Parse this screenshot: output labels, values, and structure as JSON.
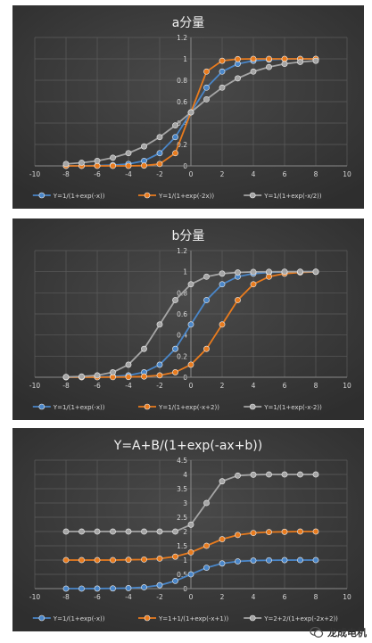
{
  "chart_data": [
    {
      "type": "line",
      "title": "a分量",
      "xlim": [
        -10,
        10
      ],
      "ylim": [
        0,
        1.2
      ],
      "xticks": [
        "-10",
        "-8",
        "-6",
        "-4",
        "-2",
        "0",
        "2",
        "4",
        "6",
        "8",
        "10"
      ],
      "yticks": [
        "0",
        "0.2",
        "0.4",
        "0.6",
        "0.8",
        "1",
        "1.2"
      ],
      "x": [
        -8,
        -7,
        -6,
        -5,
        -4,
        -3,
        -2,
        -1,
        0,
        1,
        2,
        3,
        4,
        5,
        6,
        7,
        8
      ],
      "series": [
        {
          "name": "Y=1/(1+exp(-x))",
          "color": "#4a86c8",
          "values": [
            0.0003,
            0.0009,
            0.0025,
            0.0067,
            0.018,
            0.047,
            0.119,
            0.269,
            0.5,
            0.731,
            0.881,
            0.953,
            0.982,
            0.993,
            0.998,
            0.999,
            1.0
          ]
        },
        {
          "name": "Y=1/(1+exp(-2x))",
          "color": "#e87b1e",
          "values": [
            0.0,
            0.0,
            0.0,
            0.0,
            0.0003,
            0.0025,
            0.018,
            0.119,
            0.5,
            0.881,
            0.982,
            0.998,
            1.0,
            1.0,
            1.0,
            1.0,
            1.0
          ]
        },
        {
          "name": "Y=1/(1+exp(-x/2))",
          "color": "#a5a5a5",
          "values": [
            0.018,
            0.029,
            0.047,
            0.076,
            0.119,
            0.182,
            0.269,
            0.378,
            0.5,
            0.622,
            0.731,
            0.818,
            0.881,
            0.924,
            0.953,
            0.971,
            0.982
          ]
        }
      ]
    },
    {
      "type": "line",
      "title": "b分量",
      "xlim": [
        -10,
        10
      ],
      "ylim": [
        0,
        1.2
      ],
      "xticks": [
        "-10",
        "-8",
        "-6",
        "-4",
        "-2",
        "0",
        "2",
        "4",
        "6",
        "8",
        "10"
      ],
      "yticks": [
        "0",
        "0.2",
        "0.4",
        "0.6",
        "0.8",
        "1",
        "1.2"
      ],
      "x": [
        -8,
        -7,
        -6,
        -5,
        -4,
        -3,
        -2,
        -1,
        0,
        1,
        2,
        3,
        4,
        5,
        6,
        7,
        8
      ],
      "series": [
        {
          "name": "Y=1/(1+exp(-x))",
          "color": "#4a86c8",
          "values": [
            0.0003,
            0.0009,
            0.0025,
            0.0067,
            0.018,
            0.047,
            0.119,
            0.269,
            0.5,
            0.731,
            0.881,
            0.953,
            0.982,
            0.993,
            0.998,
            0.999,
            1.0
          ]
        },
        {
          "name": "Y=1/(1+exp(-x+2))",
          "color": "#e87b1e",
          "values": [
            0.0,
            0.0001,
            0.0003,
            0.0009,
            0.0025,
            0.0067,
            0.018,
            0.047,
            0.119,
            0.269,
            0.5,
            0.731,
            0.881,
            0.953,
            0.982,
            0.993,
            0.998
          ]
        },
        {
          "name": "Y=1/(1+exp(-x-2))",
          "color": "#a5a5a5",
          "values": [
            0.0025,
            0.0067,
            0.018,
            0.047,
            0.119,
            0.269,
            0.5,
            0.731,
            0.881,
            0.953,
            0.982,
            0.993,
            0.998,
            0.999,
            1.0,
            1.0,
            1.0
          ]
        }
      ]
    },
    {
      "type": "line",
      "title": "Y=A+B/(1+exp(-ax+b))",
      "xlim": [
        -10,
        10
      ],
      "ylim": [
        0,
        4.5
      ],
      "xticks": [
        "-10",
        "-8",
        "-6",
        "-4",
        "-2",
        "0",
        "2",
        "4",
        "6",
        "8",
        "10"
      ],
      "yticks": [
        "0",
        "0.5",
        "1",
        "1.5",
        "2",
        "2.5",
        "3",
        "3.5",
        "4",
        "4.5"
      ],
      "x": [
        -8,
        -7,
        -6,
        -5,
        -4,
        -3,
        -2,
        -1,
        0,
        1,
        2,
        3,
        4,
        5,
        6,
        7,
        8
      ],
      "series": [
        {
          "name": "Y=1/(1+exp(-x))",
          "color": "#4a86c8",
          "values": [
            0.0003,
            0.0009,
            0.0025,
            0.0067,
            0.018,
            0.047,
            0.119,
            0.269,
            0.5,
            0.731,
            0.881,
            0.953,
            0.982,
            0.993,
            0.998,
            0.999,
            1.0
          ]
        },
        {
          "name": "Y=1+1/(1+exp(-x+1))",
          "color": "#e87b1e",
          "values": [
            1.0,
            1.0,
            1.0,
            1.0,
            1.01,
            1.02,
            1.05,
            1.12,
            1.27,
            1.5,
            1.73,
            1.88,
            1.95,
            1.98,
            1.99,
            2.0,
            2.0
          ]
        },
        {
          "name": "Y=2+2/(1+exp(-2x+2))",
          "color": "#a5a5a5",
          "values": [
            2.0,
            2.0,
            2.0,
            2.0,
            2.0,
            2.0,
            2.0,
            2.0,
            2.24,
            3.0,
            3.76,
            3.96,
            3.99,
            4.0,
            4.0,
            4.0,
            4.0
          ]
        }
      ]
    }
  ],
  "watermark": {
    "text": "龙成电机"
  }
}
